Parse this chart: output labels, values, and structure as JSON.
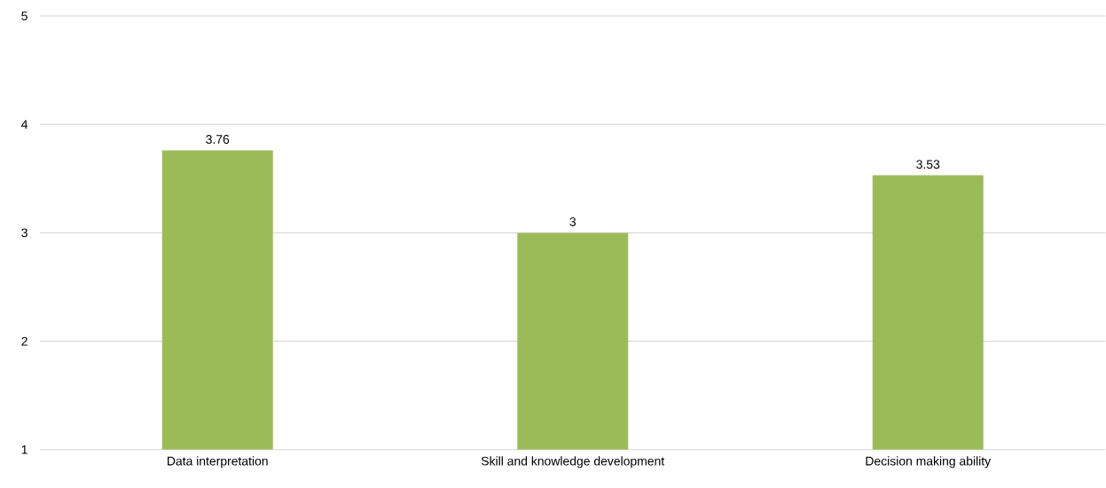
{
  "chart_data": {
    "type": "bar",
    "categories": [
      "Data interpretation",
      "Skill and knowledge development",
      "Decision making ability"
    ],
    "values": [
      3.76,
      3,
      3.53
    ],
    "color": "#9bbb59",
    "ylim": [
      1,
      5
    ],
    "yticks": [
      1,
      2,
      3,
      4,
      5
    ],
    "grid": "y",
    "data_labels": true
  }
}
